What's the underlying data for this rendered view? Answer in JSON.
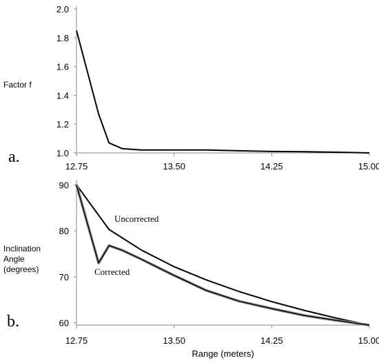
{
  "panels": {
    "a_label": "a.",
    "b_label": "b."
  },
  "chart_data": [
    {
      "type": "line",
      "panel": "a",
      "title": "",
      "xlabel": "",
      "ylabel": "Factor f",
      "xlim": [
        12.75,
        15.0
      ],
      "ylim": [
        1.0,
        2.0
      ],
      "xticks": [
        "12.75",
        "13.50",
        "14.25",
        "15.00"
      ],
      "yticks": [
        "1.0",
        "1.2",
        "1.4",
        "1.6",
        "1.8",
        "2.0"
      ],
      "grid": false,
      "series": [
        {
          "x": [
            12.75,
            12.92,
            13.0,
            13.1,
            13.25,
            13.5,
            13.75,
            14.0,
            14.25,
            14.5,
            14.75,
            15.0
          ],
          "y": [
            1.85,
            1.27,
            1.07,
            1.03,
            1.02,
            1.02,
            1.02,
            1.015,
            1.01,
            1.008,
            1.005,
            1.0
          ],
          "color": "#000000"
        }
      ]
    },
    {
      "type": "line",
      "panel": "b",
      "title": "",
      "xlabel": "Range (meters)",
      "ylabel": "Inclination Angle (degrees)",
      "ylabel_lines": [
        "Inclination",
        "Angle",
        "(degrees)"
      ],
      "xlim": [
        12.75,
        15.0
      ],
      "ylim": [
        59.5,
        90.5
      ],
      "xticks": [
        "12.75",
        "13.50",
        "14.25",
        "15.00"
      ],
      "yticks": [
        "60",
        "70",
        "80",
        "90"
      ],
      "grid": false,
      "series": [
        {
          "name": "Uncorrected",
          "x": [
            12.75,
            13.0,
            13.25,
            13.5,
            13.75,
            14.0,
            14.25,
            14.5,
            14.75,
            15.0
          ],
          "y": [
            90.0,
            80.3,
            75.8,
            72.2,
            69.3,
            66.8,
            64.6,
            62.7,
            61.0,
            59.5
          ],
          "color": "#000000"
        },
        {
          "name": "Corrected",
          "x": [
            12.75,
            12.92,
            13.0,
            13.1,
            13.25,
            13.5,
            13.75,
            14.0,
            14.25,
            14.5,
            14.75,
            15.0
          ],
          "y": [
            90.0,
            73.0,
            76.8,
            75.8,
            73.8,
            70.3,
            67.0,
            64.7,
            63.1,
            61.6,
            60.5,
            59.5
          ],
          "color": "#000000",
          "halo": "#999999"
        }
      ]
    }
  ]
}
